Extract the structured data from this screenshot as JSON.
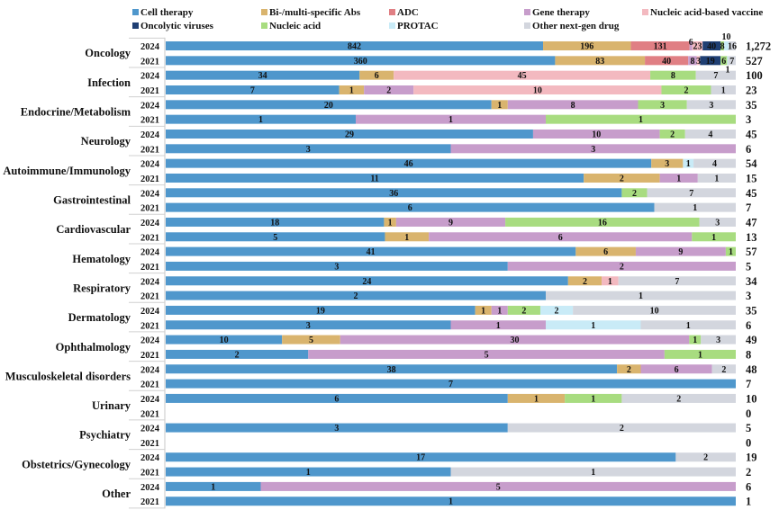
{
  "chart_data": {
    "type": "bar",
    "orientation": "horizontal",
    "stacked": "percent",
    "title": "",
    "xlabel": "",
    "ylabel": "",
    "grid": false,
    "legend_position": "top",
    "series": [
      {
        "name": "Cell therapy",
        "color": "#4F97CC"
      },
      {
        "name": "Bi-/multi-specific Abs",
        "color": "#D9B46E"
      },
      {
        "name": "ADC",
        "color": "#E07F84"
      },
      {
        "name": "Gene therapy",
        "color": "#C79DCB"
      },
      {
        "name": "Nucleic acid-based vaccine",
        "color": "#F3B9C0"
      },
      {
        "name": "Oncolytic viruses",
        "color": "#1F3F73"
      },
      {
        "name": "Nucleic acid",
        "color": "#A8DC80"
      },
      {
        "name": "PROTAC",
        "color": "#C9EBF7"
      },
      {
        "name": "Other next-gen drug",
        "color": "#D3D6DE"
      }
    ],
    "categories": [
      {
        "name": "Oncology",
        "rows": [
          {
            "year": "2024",
            "total": "1,272",
            "values": [
              842,
              196,
              131,
              6,
              23,
              40,
              8,
              10,
              16
            ]
          },
          {
            "year": "2021",
            "total": "527",
            "values": [
              360,
              83,
              40,
              8,
              3,
              19,
              6,
              1,
              7
            ]
          }
        ]
      },
      {
        "name": "Infection",
        "rows": [
          {
            "year": "2024",
            "total": "100",
            "values": [
              34,
              6,
              0,
              0,
              45,
              0,
              8,
              0,
              7
            ]
          },
          {
            "year": "2021",
            "total": "23",
            "values": [
              7,
              1,
              0,
              2,
              10,
              0,
              2,
              0,
              1
            ]
          }
        ]
      },
      {
        "name": "Endocrine/Metabolism",
        "rows": [
          {
            "year": "2024",
            "total": "35",
            "values": [
              20,
              1,
              0,
              8,
              0,
              0,
              3,
              0,
              3
            ]
          },
          {
            "year": "2021",
            "total": "3",
            "values": [
              1,
              0,
              0,
              1,
              0,
              0,
              1,
              0,
              0
            ]
          }
        ]
      },
      {
        "name": "Neurology",
        "rows": [
          {
            "year": "2024",
            "total": "45",
            "values": [
              29,
              0,
              0,
              10,
              0,
              0,
              2,
              0,
              4
            ]
          },
          {
            "year": "2021",
            "total": "6",
            "values": [
              3,
              0,
              0,
              3,
              0,
              0,
              0,
              0,
              0
            ]
          }
        ]
      },
      {
        "name": "Autoimmune/Immunology",
        "rows": [
          {
            "year": "2024",
            "total": "54",
            "values": [
              46,
              3,
              0,
              0,
              0,
              0,
              0,
              1,
              4
            ]
          },
          {
            "year": "2021",
            "total": "15",
            "values": [
              11,
              2,
              0,
              1,
              0,
              0,
              0,
              0,
              1
            ]
          }
        ]
      },
      {
        "name": "Gastrointestinal",
        "rows": [
          {
            "year": "2024",
            "total": "45",
            "values": [
              36,
              0,
              0,
              0,
              0,
              0,
              2,
              0,
              7
            ]
          },
          {
            "year": "2021",
            "total": "7",
            "values": [
              6,
              0,
              0,
              0,
              0,
              0,
              0,
              0,
              1
            ]
          }
        ]
      },
      {
        "name": "Cardiovascular",
        "rows": [
          {
            "year": "2024",
            "total": "47",
            "values": [
              18,
              1,
              0,
              9,
              0,
              0,
              16,
              0,
              3
            ]
          },
          {
            "year": "2021",
            "total": "13",
            "values": [
              5,
              1,
              0,
              6,
              0,
              0,
              1,
              0,
              0
            ]
          }
        ]
      },
      {
        "name": "Hematology",
        "rows": [
          {
            "year": "2024",
            "total": "57",
            "values": [
              41,
              6,
              0,
              9,
              0,
              0,
              1,
              0,
              0
            ]
          },
          {
            "year": "2021",
            "total": "5",
            "values": [
              3,
              0,
              0,
              2,
              0,
              0,
              0,
              0,
              0
            ]
          }
        ]
      },
      {
        "name": "Respiratory",
        "rows": [
          {
            "year": "2024",
            "total": "34",
            "values": [
              24,
              2,
              0,
              0,
              1,
              0,
              0,
              0,
              7
            ]
          },
          {
            "year": "2021",
            "total": "3",
            "values": [
              2,
              0,
              0,
              0,
              0,
              0,
              0,
              0,
              1
            ]
          }
        ]
      },
      {
        "name": "Dermatology",
        "rows": [
          {
            "year": "2024",
            "total": "35",
            "values": [
              19,
              1,
              0,
              1,
              0,
              0,
              2,
              2,
              10
            ]
          },
          {
            "year": "2021",
            "total": "6",
            "values": [
              3,
              0,
              0,
              1,
              0,
              0,
              0,
              1,
              1
            ]
          }
        ]
      },
      {
        "name": "Ophthalmology",
        "rows": [
          {
            "year": "2024",
            "total": "49",
            "values": [
              10,
              5,
              0,
              30,
              0,
              0,
              1,
              0,
              3
            ]
          },
          {
            "year": "2021",
            "total": "8",
            "values": [
              2,
              0,
              0,
              5,
              0,
              0,
              1,
              0,
              0
            ]
          }
        ]
      },
      {
        "name": "Musculoskeletal disorders",
        "rows": [
          {
            "year": "2024",
            "total": "48",
            "values": [
              38,
              2,
              0,
              6,
              0,
              0,
              0,
              0,
              2
            ]
          },
          {
            "year": "2021",
            "total": "7",
            "values": [
              7,
              0,
              0,
              0,
              0,
              0,
              0,
              0,
              0
            ]
          }
        ]
      },
      {
        "name": "Urinary",
        "rows": [
          {
            "year": "2024",
            "total": "10",
            "values": [
              6,
              1,
              0,
              0,
              0,
              0,
              1,
              0,
              2
            ]
          },
          {
            "year": "2021",
            "total": "0",
            "values": [
              0,
              0,
              0,
              0,
              0,
              0,
              0,
              0,
              0
            ]
          }
        ]
      },
      {
        "name": "Psychiatry",
        "rows": [
          {
            "year": "2024",
            "total": "5",
            "values": [
              3,
              0,
              0,
              0,
              0,
              0,
              0,
              0,
              2
            ]
          },
          {
            "year": "2021",
            "total": "0",
            "values": [
              0,
              0,
              0,
              0,
              0,
              0,
              0,
              0,
              0
            ]
          }
        ]
      },
      {
        "name": "Obstetrics/Gynecology",
        "rows": [
          {
            "year": "2024",
            "total": "19",
            "values": [
              17,
              0,
              0,
              0,
              0,
              0,
              0,
              0,
              2
            ]
          },
          {
            "year": "2021",
            "total": "2",
            "values": [
              1,
              0,
              0,
              0,
              0,
              0,
              0,
              0,
              1
            ]
          }
        ]
      },
      {
        "name": "Other",
        "rows": [
          {
            "year": "2024",
            "total": "6",
            "values": [
              1,
              0,
              0,
              5,
              0,
              0,
              0,
              0,
              0
            ]
          },
          {
            "year": "2021",
            "total": "1",
            "values": [
              1,
              0,
              0,
              0,
              0,
              0,
              0,
              0,
              0
            ]
          }
        ]
      }
    ]
  }
}
